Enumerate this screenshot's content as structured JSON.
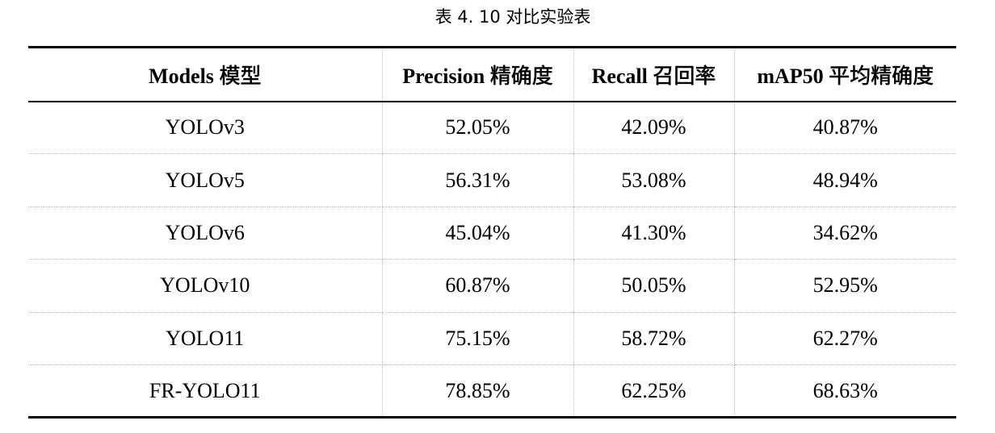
{
  "caption": "表 4. 10 对比实验表",
  "table": {
    "headers": [
      {
        "en": "Models",
        "cn": "模型"
      },
      {
        "en": "Precision",
        "cn": "精确度"
      },
      {
        "en": "Recall",
        "cn": "召回率"
      },
      {
        "en": "mAP50",
        "cn": "平均精确度"
      }
    ],
    "rows": [
      {
        "model": "YOLOv3",
        "precision": "52.05%",
        "recall": "42.09%",
        "map50": "40.87%"
      },
      {
        "model": "YOLOv5",
        "precision": "56.31%",
        "recall": "53.08%",
        "map50": "48.94%"
      },
      {
        "model": "YOLOv6",
        "precision": "45.04%",
        "recall": "41.30%",
        "map50": "34.62%"
      },
      {
        "model": "YOLOv10",
        "precision": "60.87%",
        "recall": "50.05%",
        "map50": "52.95%"
      },
      {
        "model": "YOLO11",
        "precision": "75.15%",
        "recall": "58.72%",
        "map50": "62.27%"
      },
      {
        "model": "FR-YOLO11",
        "precision": "78.85%",
        "recall": "62.25%",
        "map50": "68.63%"
      }
    ]
  }
}
